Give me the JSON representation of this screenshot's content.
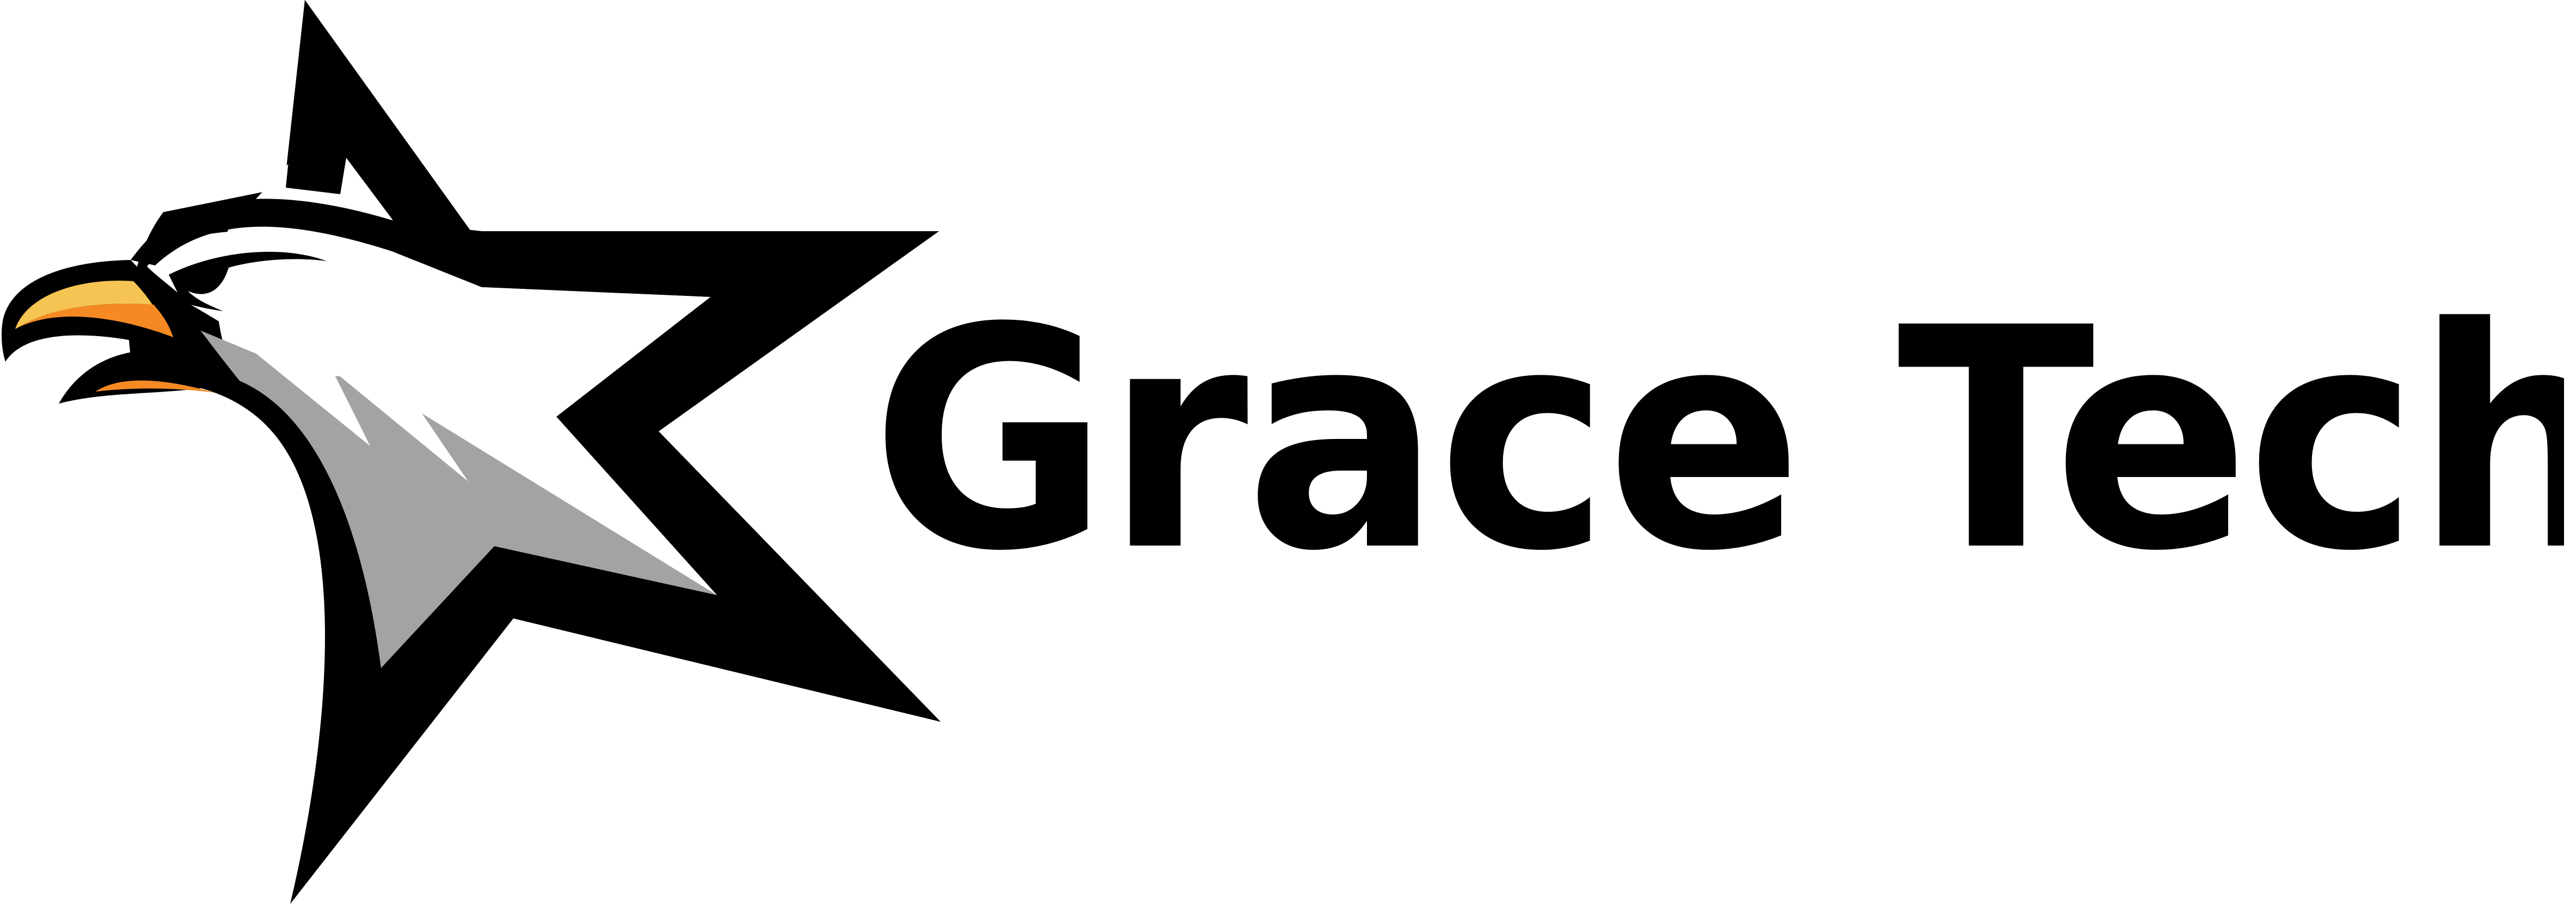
{
  "brand": {
    "name": "Grace Tech"
  },
  "emblem": {
    "icon": "eagle-star-icon"
  },
  "colors": {
    "background": "#ffffff",
    "text": "#000000",
    "star": "#000000",
    "silver": "#a3a3a3",
    "silver_light": "#cfcfcf",
    "beak_orange": "#f58a24",
    "beak_yellow": "#f6c453"
  }
}
